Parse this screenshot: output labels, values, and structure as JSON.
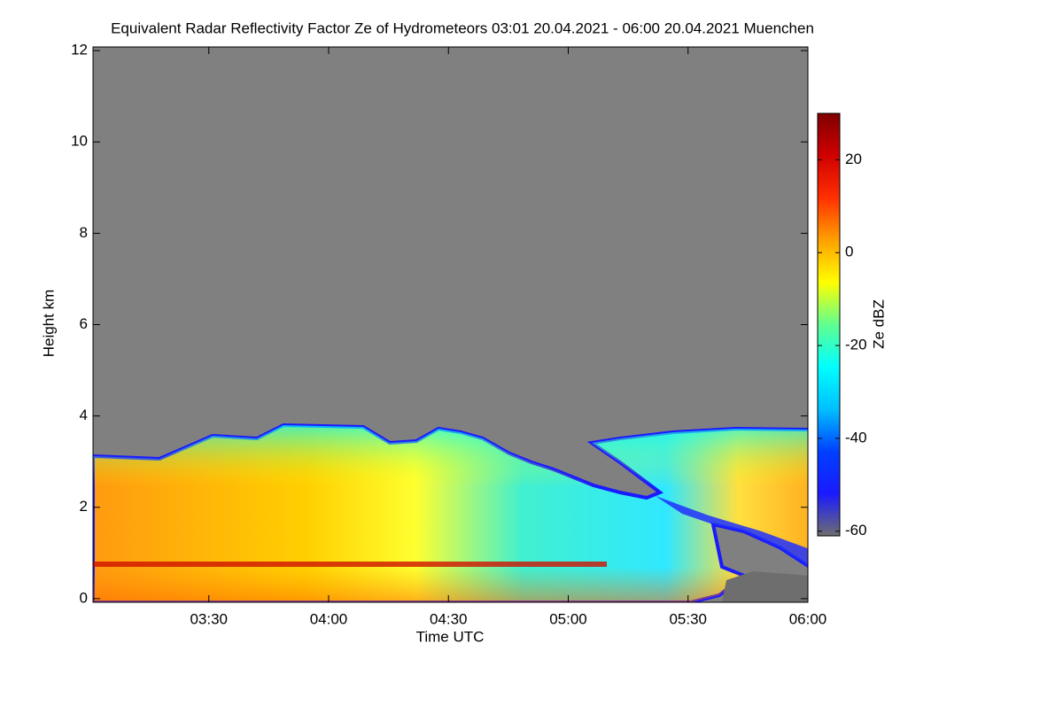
{
  "chart_data": {
    "type": "heatmap",
    "title": "Equivalent Radar Reflectivity Factor Ze of Hydrometeors   03:01 20.04.2021 - 06:00 20.04.2021 Muenchen",
    "x_label": "Time UTC",
    "y_label": "Height km",
    "xlim": [
      181,
      360
    ],
    "xticks": [
      {
        "value": 210,
        "label": "03:30"
      },
      {
        "value": 240,
        "label": "04:00"
      },
      {
        "value": 270,
        "label": "04:30"
      },
      {
        "value": 300,
        "label": "05:00"
      },
      {
        "value": 330,
        "label": "05:30"
      },
      {
        "value": 360,
        "label": "06:00"
      }
    ],
    "ylim": [
      -0.08,
      12.08
    ],
    "yticks": [
      0,
      2,
      4,
      6,
      8,
      10,
      12
    ],
    "background": "#808080",
    "colorbar": {
      "label": "Ze dBZ",
      "clim": [
        -61,
        30
      ],
      "ticks": [
        -60,
        -40,
        -20,
        0,
        20
      ],
      "colors": [
        "#6e6e6e",
        "#1a1aff",
        "#0040ff",
        "#00c0ff",
        "#00ffff",
        "#60ff90",
        "#ffff00",
        "#ffa000",
        "#ff3000",
        "#d00000",
        "#800000"
      ]
    }
  }
}
